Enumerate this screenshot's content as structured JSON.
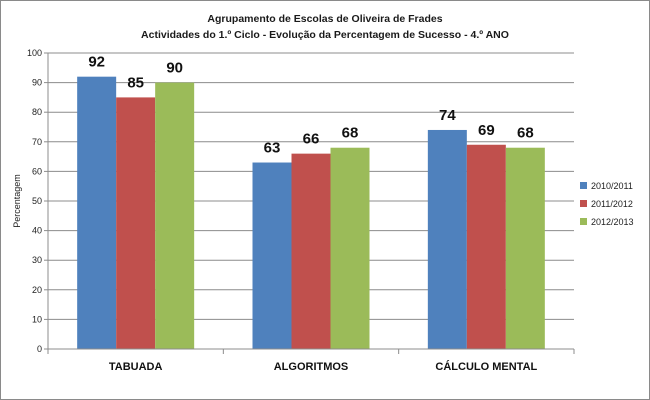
{
  "chart_data": {
    "type": "bar",
    "title": "Agrupamento de Escolas de Oliveira de Frades",
    "subtitle": "Actividades do 1.º Ciclo - Evolução da Percentagem de Sucesso - 4.º ANO",
    "xlabel": "",
    "ylabel": "Percentagem",
    "ylim": [
      0,
      100
    ],
    "yticks": [
      0,
      10,
      20,
      30,
      40,
      50,
      60,
      70,
      80,
      90,
      100
    ],
    "grid": true,
    "legend_position": "right",
    "categories": [
      "TABUADA",
      "ALGORITMOS",
      "CÁLCULO MENTAL"
    ],
    "series": [
      {
        "name": "2010/2011",
        "color": "#4f81bd",
        "values": [
          92,
          63,
          74
        ]
      },
      {
        "name": "2011/2012",
        "color": "#c0504d",
        "values": [
          85,
          66,
          69
        ]
      },
      {
        "name": "2012/2013",
        "color": "#9bbb59",
        "values": [
          90,
          68,
          68
        ]
      }
    ]
  }
}
